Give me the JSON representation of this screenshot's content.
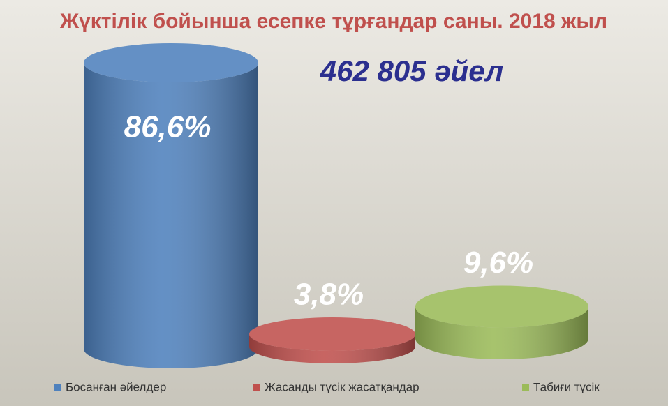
{
  "chart_data": {
    "type": "bar",
    "title": "Жүктілік бойынша есепке тұрғандар саны. 2018 жыл",
    "annotation": "462 805 әйел",
    "categories": [
      null
    ],
    "series": [
      {
        "name": "Босанған әйелдер",
        "color": "#4f81bd",
        "values": [
          86.6
        ],
        "value_labels": [
          "86,6%"
        ]
      },
      {
        "name": "Жасанды түсік жасатқандар",
        "color": "#c0504d",
        "values": [
          3.8
        ],
        "value_labels": [
          "3,8%"
        ]
      },
      {
        "name": "Табиғи түсік",
        "color": "#9bbb59",
        "values": [
          9.6
        ],
        "value_labels": [
          "9,6%"
        ]
      }
    ]
  }
}
